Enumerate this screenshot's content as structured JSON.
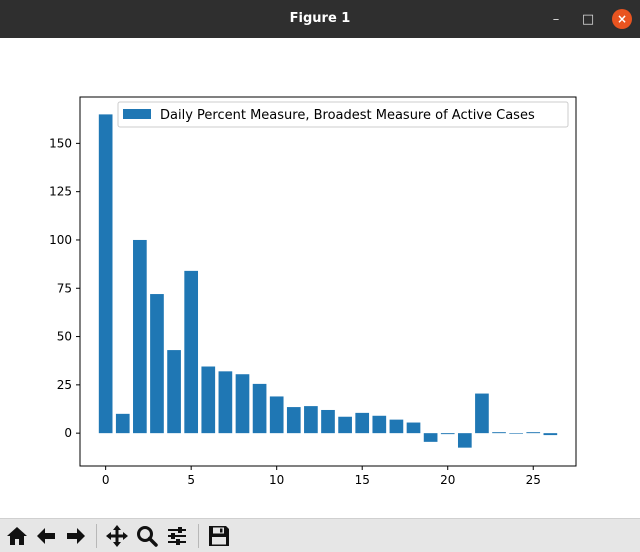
{
  "window": {
    "title": "Figure 1",
    "controls": {
      "minimize": "–",
      "maximize": "□",
      "close": "×"
    }
  },
  "toolbar": {
    "buttons": [
      {
        "name": "home-icon",
        "tooltip": "Home"
      },
      {
        "name": "back-arrow-icon",
        "tooltip": "Back"
      },
      {
        "name": "forward-arrow-icon",
        "tooltip": "Forward"
      },
      {
        "name": "pan-icon",
        "tooltip": "Pan"
      },
      {
        "name": "zoom-icon",
        "tooltip": "Zoom"
      },
      {
        "name": "configure-subplots-icon",
        "tooltip": "Subplots"
      },
      {
        "name": "save-icon",
        "tooltip": "Save"
      }
    ]
  },
  "chart_data": {
    "type": "bar",
    "series": [
      {
        "name": "Daily Percent Measure, Broadest Measure of Active Cases",
        "color": "#1f77b4",
        "x": [
          0,
          1,
          2,
          3,
          4,
          5,
          6,
          7,
          8,
          9,
          10,
          11,
          12,
          13,
          14,
          15,
          16,
          17,
          18,
          19,
          20,
          21,
          22,
          23,
          24,
          25,
          26
        ],
        "values": [
          165,
          10,
          100,
          72,
          43,
          84,
          34.5,
          32,
          30.5,
          25.5,
          19,
          13.5,
          14,
          12,
          8.5,
          10.5,
          9,
          7,
          5.5,
          -4.5,
          -0.5,
          -7.5,
          20.5,
          0.5,
          0,
          0.5,
          -1
        ]
      }
    ],
    "xlim": [
      -1.5,
      27.5
    ],
    "ylim": [
      -17,
      174
    ],
    "xticks": [
      0,
      5,
      10,
      15,
      20,
      25
    ],
    "yticks": [
      0,
      25,
      50,
      75,
      100,
      125,
      150
    ],
    "xlabel": "",
    "ylabel": "",
    "title": "",
    "grid": false,
    "legend_position": "upper right"
  }
}
